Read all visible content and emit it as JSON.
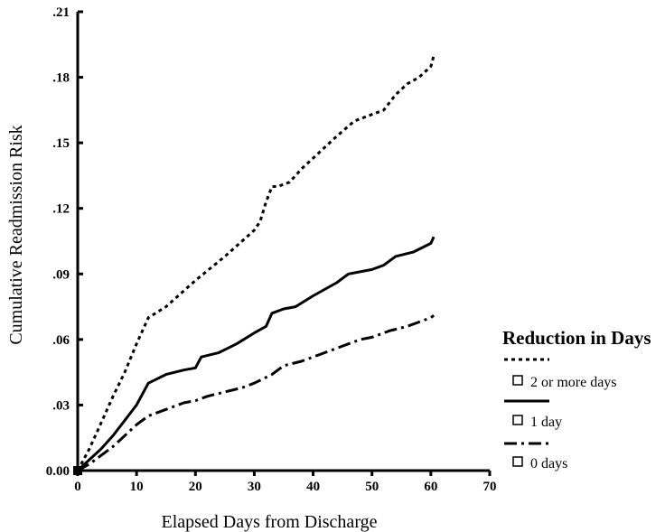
{
  "chart_data": {
    "type": "line",
    "title": "",
    "xlabel": "Elapsed Days from Discharge",
    "ylabel": "Cumulative Readmission Risk",
    "xlim": [
      0,
      70
    ],
    "ylim": [
      0,
      0.21
    ],
    "x_ticks": [
      0,
      10,
      20,
      30,
      40,
      50,
      60,
      70
    ],
    "x_tick_labels": [
      "0",
      "10",
      "20",
      "30",
      "40",
      "50",
      "60",
      "70"
    ],
    "y_ticks": [
      0,
      0.03,
      0.06,
      0.09,
      0.12,
      0.15,
      0.18,
      0.21
    ],
    "y_tick_labels": [
      "0.00",
      ".03",
      ".06",
      ".09",
      ".12",
      ".15",
      ".18",
      ".21"
    ],
    "grid": false,
    "legend": {
      "title": "Reduction in Days",
      "placement": "right",
      "entries": [
        "2 or more days",
        "1 day",
        "0 days"
      ]
    },
    "series": [
      {
        "name": "2 or more days",
        "dash": "dotted",
        "x": [
          0,
          2,
          4,
          6,
          8,
          10,
          12,
          15,
          20,
          25,
          30,
          31,
          32,
          33,
          34,
          36,
          38,
          40,
          44,
          47,
          50,
          52,
          54,
          56,
          58,
          60,
          60.5
        ],
        "y": [
          0,
          0.01,
          0.022,
          0.034,
          0.045,
          0.058,
          0.07,
          0.075,
          0.087,
          0.098,
          0.11,
          0.114,
          0.123,
          0.13,
          0.13,
          0.132,
          0.138,
          0.143,
          0.153,
          0.16,
          0.163,
          0.165,
          0.172,
          0.177,
          0.18,
          0.185,
          0.19
        ]
      },
      {
        "name": "1 day",
        "dash": "solid",
        "x": [
          0,
          2,
          4,
          6,
          8,
          10,
          12,
          15,
          18,
          20,
          21,
          24,
          27,
          30,
          32,
          33,
          35,
          37,
          40,
          44,
          46,
          50,
          52,
          54,
          57,
          60,
          60.5
        ],
        "y": [
          0,
          0.005,
          0.01,
          0.016,
          0.023,
          0.03,
          0.04,
          0.044,
          0.046,
          0.047,
          0.052,
          0.054,
          0.058,
          0.063,
          0.066,
          0.072,
          0.074,
          0.075,
          0.08,
          0.086,
          0.09,
          0.092,
          0.094,
          0.098,
          0.1,
          0.104,
          0.107
        ]
      },
      {
        "name": "0 days",
        "dash": "dash-dot",
        "x": [
          0,
          2,
          4,
          6,
          8,
          10,
          12,
          15,
          18,
          20,
          22,
          25,
          28,
          30,
          33,
          35,
          38,
          40,
          43,
          46,
          48,
          50,
          53,
          56,
          58,
          60,
          60.5
        ],
        "y": [
          0,
          0.003,
          0.007,
          0.011,
          0.016,
          0.021,
          0.025,
          0.028,
          0.031,
          0.032,
          0.034,
          0.036,
          0.038,
          0.04,
          0.044,
          0.048,
          0.05,
          0.052,
          0.055,
          0.058,
          0.06,
          0.061,
          0.064,
          0.066,
          0.068,
          0.07,
          0.071
        ]
      }
    ]
  }
}
